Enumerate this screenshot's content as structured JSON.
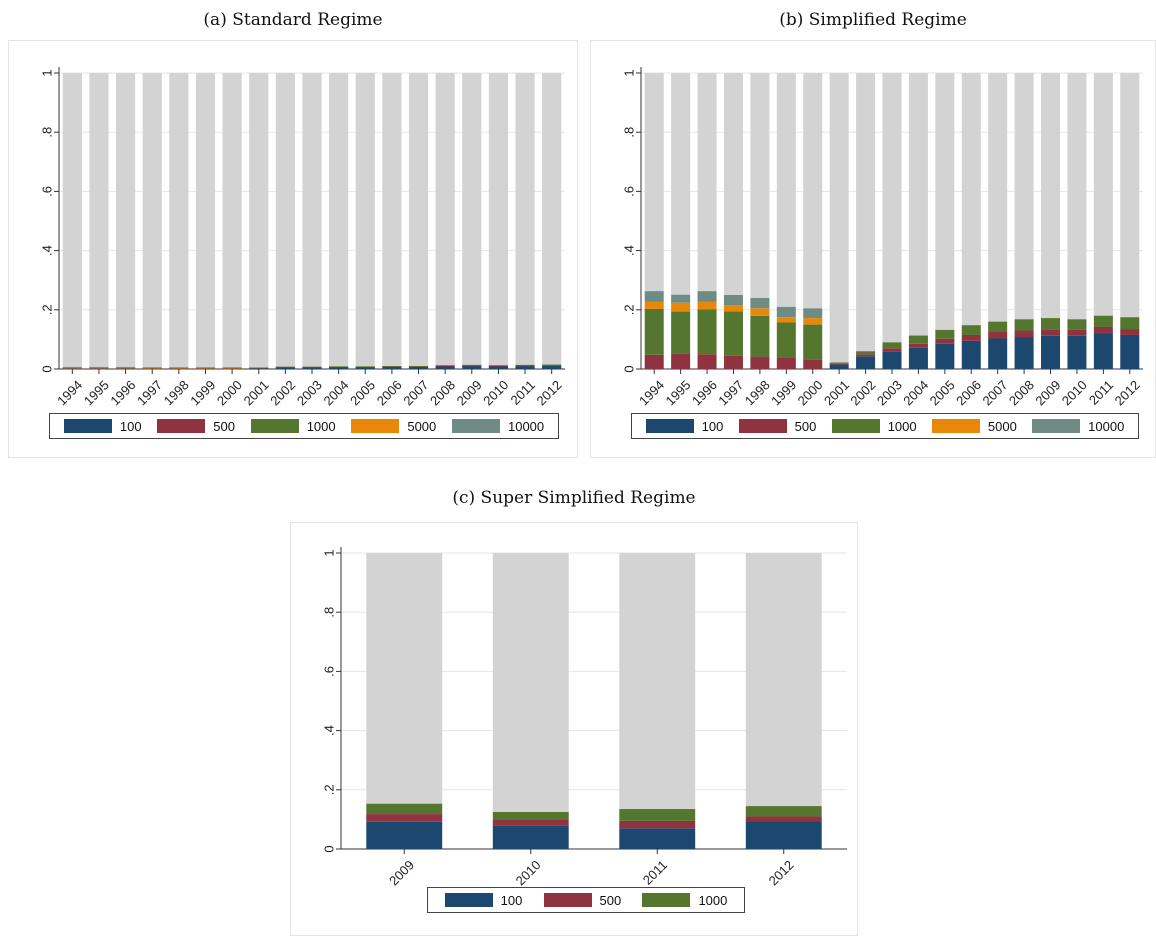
{
  "series_colors": {
    "100": "#1c4870",
    "500": "#903340",
    "1000": "#55762e",
    "5000": "#e8880a",
    "10000": "#6f8c84",
    "remainder": "#d3d3d3"
  },
  "panels": {
    "a": {
      "caption": "(a) Standard Regime",
      "legend": [
        "100",
        "500",
        "1000",
        "5000",
        "10000"
      ]
    },
    "b": {
      "caption": "(b) Simplified Regime",
      "legend": [
        "100",
        "500",
        "1000",
        "5000",
        "10000"
      ]
    },
    "c": {
      "caption": "(c) Super Simplified Regime",
      "legend": [
        "100",
        "500",
        "1000"
      ]
    }
  },
  "chart_data": [
    {
      "type": "bar",
      "stacked": true,
      "title": "(a) Standard Regime",
      "xlabel": "",
      "ylabel": "",
      "ylim": [
        0,
        1
      ],
      "yticks": [
        "0",
        ".2",
        ".4",
        ".6",
        ".8",
        "1"
      ],
      "grid": true,
      "legend_position": "bottom",
      "categories": [
        "1994",
        "1995",
        "1996",
        "1997",
        "1998",
        "1999",
        "2000",
        "2001",
        "2002",
        "2003",
        "2004",
        "2005",
        "2006",
        "2007",
        "2008",
        "2009",
        "2010",
        "2011",
        "2012"
      ],
      "series": [
        {
          "name": "100",
          "values": [
            0.001,
            0.001,
            0.001,
            0.001,
            0.001,
            0.001,
            0.001,
            0.003,
            0.006,
            0.006,
            0.007,
            0.007,
            0.008,
            0.008,
            0.009,
            0.01,
            0.009,
            0.01,
            0.011
          ]
        },
        {
          "name": "500",
          "values": [
            0.001,
            0.001,
            0.001,
            0.001,
            0.001,
            0.001,
            0.001,
            0.001,
            0.001,
            0.001,
            0.001,
            0.001,
            0.001,
            0.001,
            0.002,
            0.002,
            0.002,
            0.002,
            0.002
          ]
        },
        {
          "name": "1000",
          "values": [
            0.003,
            0.003,
            0.003,
            0.002,
            0.002,
            0.002,
            0.002,
            0.001,
            0.001,
            0.001,
            0.001,
            0.001,
            0.001,
            0.001,
            0.002,
            0.002,
            0.002,
            0.002,
            0.002
          ]
        },
        {
          "name": "5000",
          "values": [
            0.001,
            0.001,
            0.001,
            0.001,
            0.001,
            0.001,
            0.001,
            0,
            0,
            0,
            0,
            0,
            0,
            0,
            0,
            0,
            0,
            0,
            0
          ]
        },
        {
          "name": "10000",
          "values": [
            0.001,
            0.001,
            0.001,
            0.001,
            0.001,
            0.001,
            0.001,
            0,
            0,
            0,
            0,
            0,
            0,
            0,
            0,
            0,
            0,
            0,
            0
          ]
        }
      ],
      "total": 1
    },
    {
      "type": "bar",
      "stacked": true,
      "title": "(b) Simplified Regime",
      "xlabel": "",
      "ylabel": "",
      "ylim": [
        0,
        1
      ],
      "yticks": [
        "0",
        ".2",
        ".4",
        ".6",
        ".8",
        "1"
      ],
      "grid": true,
      "legend_position": "bottom",
      "categories": [
        "1994",
        "1995",
        "1996",
        "1997",
        "1998",
        "1999",
        "2000",
        "2001",
        "2002",
        "2003",
        "2004",
        "2005",
        "2006",
        "2007",
        "2008",
        "2009",
        "2010",
        "2011",
        "2012"
      ],
      "series": [
        {
          "name": "100",
          "values": [
            0,
            0,
            0,
            0,
            0,
            0,
            0,
            0.015,
            0.043,
            0.06,
            0.072,
            0.085,
            0.095,
            0.103,
            0.108,
            0.112,
            0.112,
            0.12,
            0.115
          ]
        },
        {
          "name": "500",
          "values": [
            0.048,
            0.052,
            0.05,
            0.045,
            0.042,
            0.04,
            0.033,
            0.003,
            0.007,
            0.01,
            0.013,
            0.017,
            0.02,
            0.022,
            0.022,
            0.022,
            0.02,
            0.022,
            0.02
          ]
        },
        {
          "name": "1000",
          "values": [
            0.155,
            0.142,
            0.152,
            0.15,
            0.138,
            0.117,
            0.117,
            0.004,
            0.01,
            0.02,
            0.028,
            0.03,
            0.033,
            0.035,
            0.038,
            0.038,
            0.036,
            0.038,
            0.04
          ]
        },
        {
          "name": "5000",
          "values": [
            0.025,
            0.03,
            0.026,
            0.02,
            0.025,
            0.018,
            0.022,
            0,
            0,
            0,
            0,
            0,
            0,
            0,
            0,
            0,
            0,
            0,
            0
          ]
        },
        {
          "name": "10000",
          "values": [
            0.035,
            0.027,
            0.035,
            0.035,
            0.035,
            0.035,
            0.033,
            0,
            0,
            0,
            0,
            0,
            0,
            0,
            0,
            0,
            0,
            0,
            0
          ]
        }
      ],
      "total": 1
    },
    {
      "type": "bar",
      "stacked": true,
      "title": "(c) Super Simplified Regime",
      "xlabel": "",
      "ylabel": "",
      "ylim": [
        0,
        1
      ],
      "yticks": [
        "0",
        ".2",
        ".4",
        ".6",
        ".8",
        "1"
      ],
      "grid": true,
      "legend_position": "bottom",
      "categories": [
        "2009",
        "2010",
        "2011",
        "2012"
      ],
      "series": [
        {
          "name": "100",
          "values": [
            0.092,
            0.078,
            0.07,
            0.093
          ]
        },
        {
          "name": "500",
          "values": [
            0.026,
            0.022,
            0.025,
            0.017
          ]
        },
        {
          "name": "1000",
          "values": [
            0.035,
            0.025,
            0.04,
            0.035
          ]
        }
      ],
      "total": 1
    }
  ]
}
